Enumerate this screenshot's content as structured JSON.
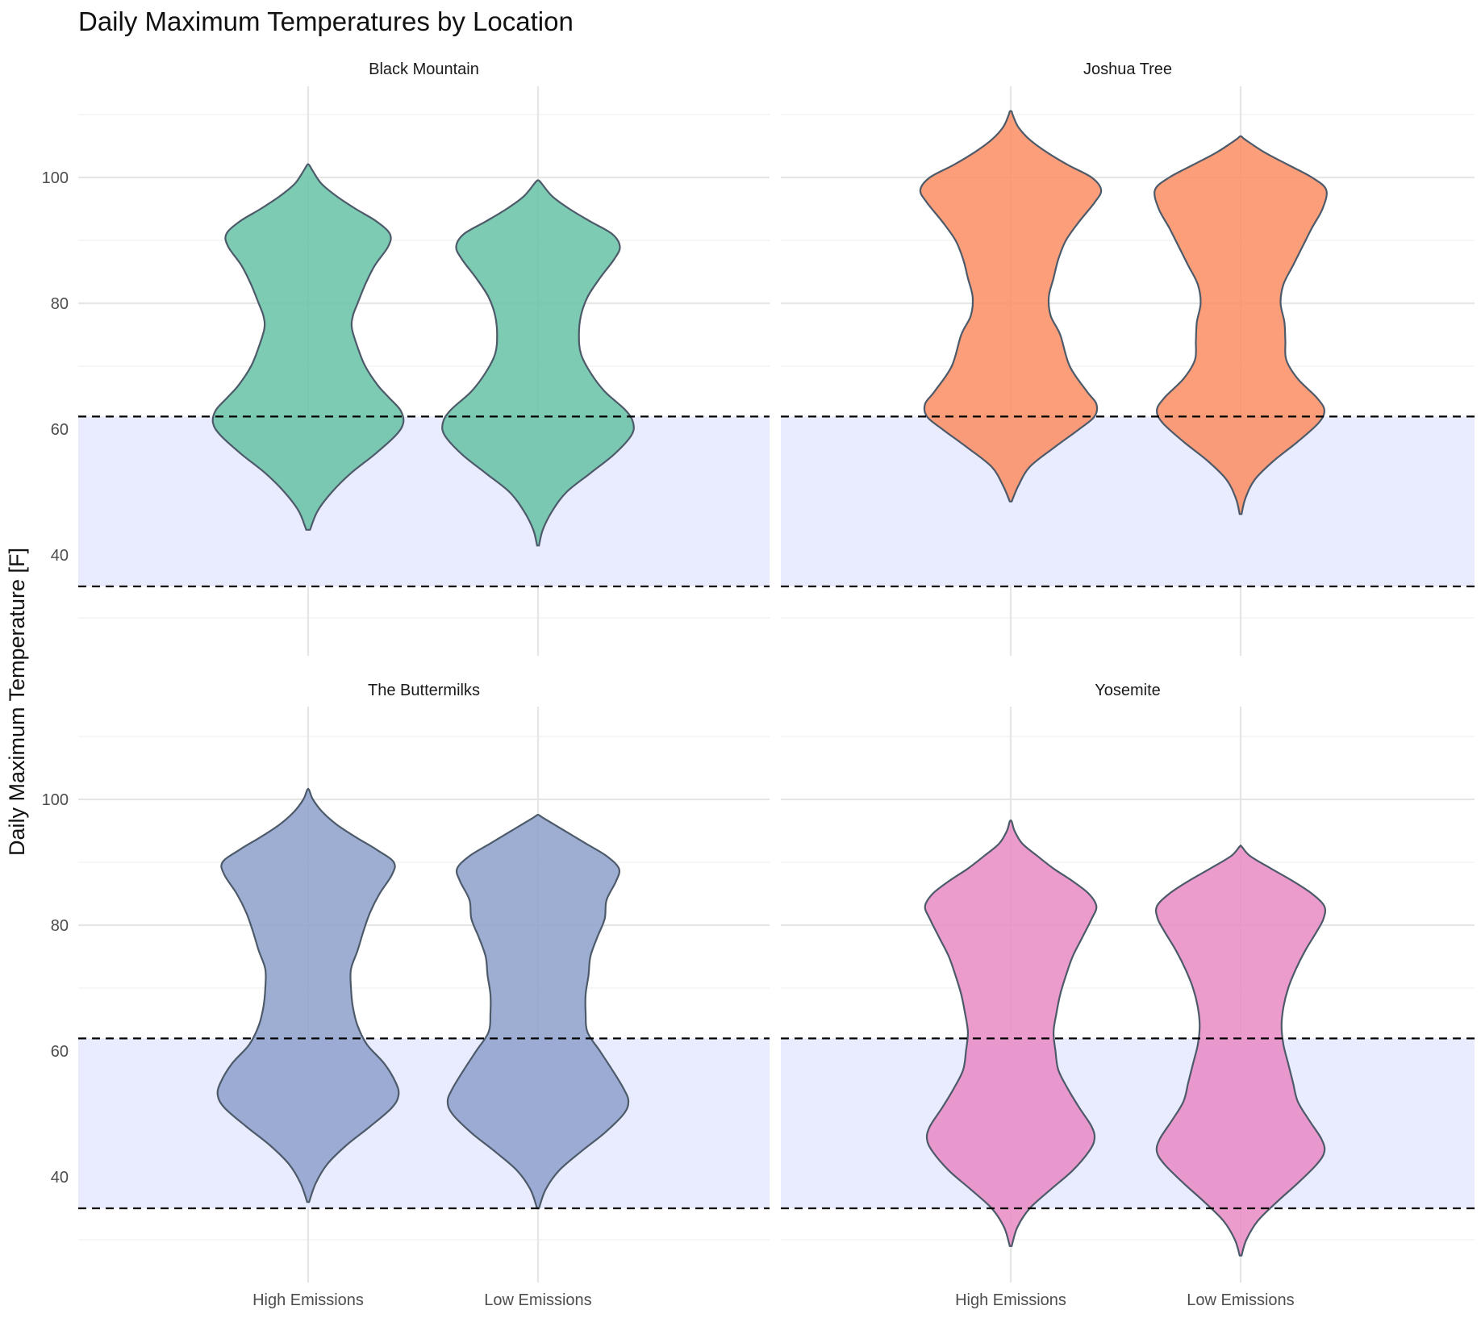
{
  "chart_data": {
    "type": "violin",
    "title": "Daily Maximum Temperatures by Location",
    "ylabel": "Daily Maximum Temperature [F]",
    "xlabel": "",
    "categories": [
      "High Emissions",
      "Low Emissions"
    ],
    "y_ticks": [
      40,
      60,
      80,
      100
    ],
    "ylim": [
      27,
      115
    ],
    "grid": true,
    "reference_band": {
      "low": 35,
      "high": 62,
      "fill": "#e8eaff",
      "line_style": "dashed",
      "line_color": "#000000"
    },
    "violin_stroke": "#4d5a6a",
    "facets": [
      {
        "name": "Black Mountain",
        "color": "#66c2a5",
        "violins": [
          {
            "category": "High Emissions",
            "min": 44,
            "max": 102,
            "profile": [
              [
                44,
                0.02
              ],
              [
                47,
                0.1
              ],
              [
                50,
                0.25
              ],
              [
                53,
                0.45
              ],
              [
                56,
                0.7
              ],
              [
                59,
                0.92
              ],
              [
                61,
                1.0
              ],
              [
                63,
                0.97
              ],
              [
                65,
                0.85
              ],
              [
                67,
                0.73
              ],
              [
                70,
                0.6
              ],
              [
                73,
                0.52
              ],
              [
                76,
                0.46
              ],
              [
                78,
                0.47
              ],
              [
                80,
                0.52
              ],
              [
                83,
                0.6
              ],
              [
                86,
                0.7
              ],
              [
                89,
                0.84
              ],
              [
                91,
                0.86
              ],
              [
                93,
                0.72
              ],
              [
                95,
                0.5
              ],
              [
                97,
                0.3
              ],
              [
                99,
                0.14
              ],
              [
                101,
                0.05
              ],
              [
                102,
                0.01
              ]
            ]
          },
          {
            "category": "Low Emissions",
            "min": 41.5,
            "max": 99.5,
            "profile": [
              [
                41.5,
                0.01
              ],
              [
                44,
                0.05
              ],
              [
                47,
                0.15
              ],
              [
                50,
                0.3
              ],
              [
                53,
                0.55
              ],
              [
                56,
                0.8
              ],
              [
                59,
                0.98
              ],
              [
                61,
                1.0
              ],
              [
                63,
                0.92
              ],
              [
                66,
                0.7
              ],
              [
                69,
                0.55
              ],
              [
                72,
                0.45
              ],
              [
                75,
                0.43
              ],
              [
                78,
                0.45
              ],
              [
                81,
                0.52
              ],
              [
                84,
                0.65
              ],
              [
                87,
                0.8
              ],
              [
                89,
                0.86
              ],
              [
                91,
                0.78
              ],
              [
                93,
                0.55
              ],
              [
                95,
                0.33
              ],
              [
                97,
                0.15
              ],
              [
                99,
                0.04
              ],
              [
                99.5,
                0.01
              ]
            ]
          }
        ]
      },
      {
        "name": "Joshua Tree",
        "color": "#fc8d62",
        "violins": [
          {
            "category": "High Emissions",
            "min": 48.5,
            "max": 110.5,
            "profile": [
              [
                48.5,
                0.01
              ],
              [
                51,
                0.08
              ],
              [
                54,
                0.2
              ],
              [
                57,
                0.45
              ],
              [
                60,
                0.72
              ],
              [
                62,
                0.88
              ],
              [
                64,
                0.9
              ],
              [
                66,
                0.8
              ],
              [
                70,
                0.62
              ],
              [
                75,
                0.52
              ],
              [
                78,
                0.42
              ],
              [
                81,
                0.4
              ],
              [
                84,
                0.45
              ],
              [
                87,
                0.5
              ],
              [
                90,
                0.58
              ],
              [
                93,
                0.72
              ],
              [
                96,
                0.88
              ],
              [
                98,
                0.95
              ],
              [
                100,
                0.85
              ],
              [
                102,
                0.6
              ],
              [
                104,
                0.38
              ],
              [
                106,
                0.2
              ],
              [
                108,
                0.08
              ],
              [
                110,
                0.02
              ],
              [
                110.5,
                0.01
              ]
            ]
          },
          {
            "category": "Low Emissions",
            "min": 46.5,
            "max": 106.5,
            "profile": [
              [
                46.5,
                0.01
              ],
              [
                49,
                0.05
              ],
              [
                52,
                0.15
              ],
              [
                55,
                0.35
              ],
              [
                58,
                0.6
              ],
              [
                61,
                0.82
              ],
              [
                63,
                0.88
              ],
              [
                65,
                0.8
              ],
              [
                68,
                0.6
              ],
              [
                71,
                0.48
              ],
              [
                74,
                0.47
              ],
              [
                77,
                0.46
              ],
              [
                80,
                0.42
              ],
              [
                83,
                0.45
              ],
              [
                86,
                0.55
              ],
              [
                89,
                0.65
              ],
              [
                92,
                0.75
              ],
              [
                95,
                0.86
              ],
              [
                98,
                0.9
              ],
              [
                100,
                0.75
              ],
              [
                102,
                0.5
              ],
              [
                104,
                0.25
              ],
              [
                106,
                0.05
              ],
              [
                106.5,
                0.01
              ]
            ]
          }
        ]
      },
      {
        "name": "The Buttermilks",
        "color": "#8da0cb",
        "violins": [
          {
            "category": "High Emissions",
            "min": 36,
            "max": 101.5,
            "profile": [
              [
                36,
                0.01
              ],
              [
                39,
                0.08
              ],
              [
                42,
                0.2
              ],
              [
                45,
                0.4
              ],
              [
                48,
                0.65
              ],
              [
                51,
                0.88
              ],
              [
                53,
                0.95
              ],
              [
                55,
                0.92
              ],
              [
                58,
                0.8
              ],
              [
                61,
                0.62
              ],
              [
                64,
                0.52
              ],
              [
                67,
                0.47
              ],
              [
                70,
                0.45
              ],
              [
                73,
                0.45
              ],
              [
                76,
                0.52
              ],
              [
                79,
                0.58
              ],
              [
                82,
                0.65
              ],
              [
                85,
                0.75
              ],
              [
                88,
                0.88
              ],
              [
                90,
                0.9
              ],
              [
                92,
                0.72
              ],
              [
                94,
                0.5
              ],
              [
                96,
                0.3
              ],
              [
                98,
                0.15
              ],
              [
                100,
                0.05
              ],
              [
                101.5,
                0.01
              ]
            ]
          },
          {
            "category": "Low Emissions",
            "min": 35,
            "max": 97.5,
            "profile": [
              [
                35,
                0.01
              ],
              [
                38,
                0.08
              ],
              [
                41,
                0.22
              ],
              [
                44,
                0.45
              ],
              [
                47,
                0.7
              ],
              [
                50,
                0.9
              ],
              [
                52,
                0.95
              ],
              [
                54,
                0.9
              ],
              [
                57,
                0.78
              ],
              [
                60,
                0.65
              ],
              [
                63,
                0.52
              ],
              [
                66,
                0.5
              ],
              [
                69,
                0.5
              ],
              [
                72,
                0.53
              ],
              [
                75,
                0.55
              ],
              [
                78,
                0.62
              ],
              [
                81,
                0.7
              ],
              [
                84,
                0.72
              ],
              [
                87,
                0.82
              ],
              [
                89,
                0.85
              ],
              [
                91,
                0.72
              ],
              [
                93,
                0.5
              ],
              [
                95,
                0.28
              ],
              [
                97,
                0.06
              ],
              [
                97.5,
                0.01
              ]
            ]
          }
        ]
      },
      {
        "name": "Yosemite",
        "color": "#e78ac3",
        "violins": [
          {
            "category": "High Emissions",
            "min": 29,
            "max": 96.5,
            "profile": [
              [
                29,
                0.01
              ],
              [
                32,
                0.07
              ],
              [
                35,
                0.2
              ],
              [
                38,
                0.42
              ],
              [
                41,
                0.65
              ],
              [
                44,
                0.82
              ],
              [
                46,
                0.88
              ],
              [
                48,
                0.85
              ],
              [
                51,
                0.72
              ],
              [
                54,
                0.6
              ],
              [
                57,
                0.5
              ],
              [
                60,
                0.47
              ],
              [
                63,
                0.45
              ],
              [
                66,
                0.48
              ],
              [
                69,
                0.52
              ],
              [
                72,
                0.58
              ],
              [
                75,
                0.65
              ],
              [
                78,
                0.75
              ],
              [
                81,
                0.85
              ],
              [
                83,
                0.9
              ],
              [
                85,
                0.82
              ],
              [
                87,
                0.65
              ],
              [
                89,
                0.45
              ],
              [
                91,
                0.28
              ],
              [
                93,
                0.12
              ],
              [
                95,
                0.04
              ],
              [
                96.5,
                0.01
              ]
            ]
          },
          {
            "category": "Low Emissions",
            "min": 27.5,
            "max": 92.5,
            "profile": [
              [
                27.5,
                0.01
              ],
              [
                30,
                0.06
              ],
              [
                33,
                0.18
              ],
              [
                36,
                0.38
              ],
              [
                39,
                0.6
              ],
              [
                42,
                0.8
              ],
              [
                44,
                0.88
              ],
              [
                46,
                0.85
              ],
              [
                49,
                0.72
              ],
              [
                52,
                0.6
              ],
              [
                55,
                0.55
              ],
              [
                58,
                0.5
              ],
              [
                61,
                0.45
              ],
              [
                64,
                0.43
              ],
              [
                67,
                0.45
              ],
              [
                70,
                0.5
              ],
              [
                73,
                0.58
              ],
              [
                76,
                0.68
              ],
              [
                79,
                0.8
              ],
              [
                81,
                0.87
              ],
              [
                83,
                0.88
              ],
              [
                85,
                0.75
              ],
              [
                87,
                0.55
              ],
              [
                89,
                0.32
              ],
              [
                91,
                0.1
              ],
              [
                92.5,
                0.01
              ]
            ]
          }
        ]
      }
    ]
  }
}
